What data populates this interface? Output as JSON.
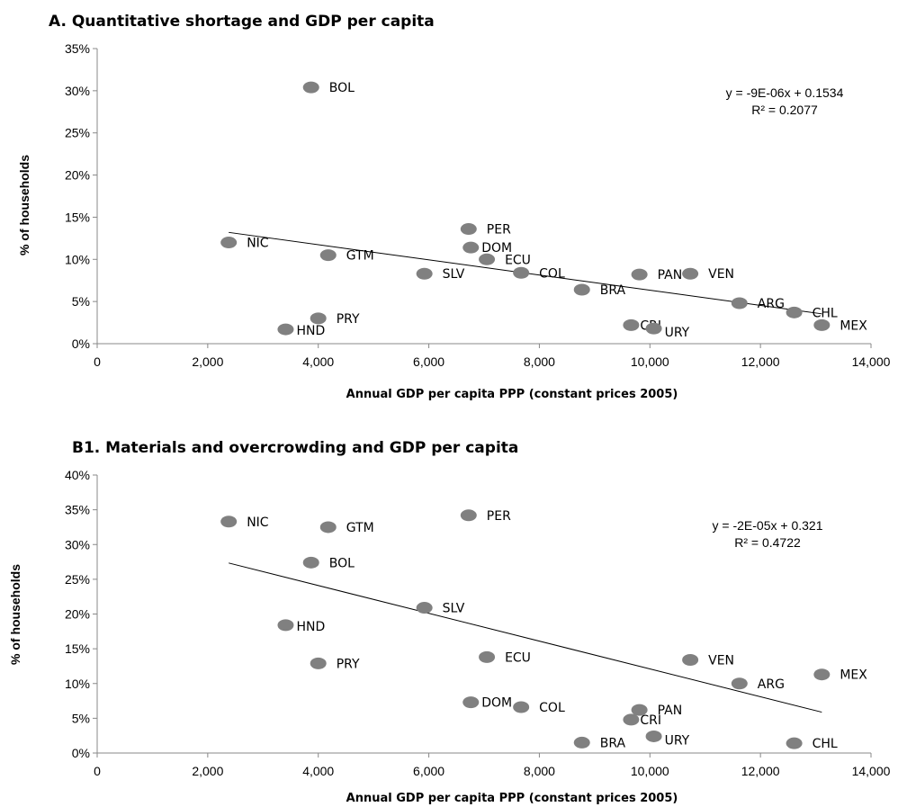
{
  "chart_data": [
    {
      "type": "scatter",
      "title": "A. Quantitative shortage and GDP per capita",
      "xlabel": "Annual GDP per capita PPP (constant prices 2005)",
      "ylabel": "% of households",
      "xlim": [
        0,
        14000
      ],
      "ylim": [
        0,
        0.35
      ],
      "x_ticks": [
        "0",
        "2,000",
        "4,000",
        "6,000",
        "8,000",
        "10,000",
        "12,000",
        "14,000"
      ],
      "y_ticks": [
        "0%",
        "5%",
        "10%",
        "15%",
        "20%",
        "25%",
        "30%",
        "35%"
      ],
      "points": [
        {
          "label": "BOL",
          "x": 3870,
          "y": 0.304
        },
        {
          "label": "NIC",
          "x": 2380,
          "y": 0.12
        },
        {
          "label": "GTM",
          "x": 4180,
          "y": 0.105
        },
        {
          "label": "SLV",
          "x": 5920,
          "y": 0.083
        },
        {
          "label": "PRY",
          "x": 4000,
          "y": 0.03
        },
        {
          "label": "HND",
          "x": 3410,
          "y": 0.017
        },
        {
          "label": "PER",
          "x": 6720,
          "y": 0.136
        },
        {
          "label": "DOM",
          "x": 6760,
          "y": 0.114
        },
        {
          "label": "ECU",
          "x": 7050,
          "y": 0.1
        },
        {
          "label": "COL",
          "x": 7670,
          "y": 0.084
        },
        {
          "label": "BRA",
          "x": 8770,
          "y": 0.064
        },
        {
          "label": "PAN",
          "x": 9810,
          "y": 0.082
        },
        {
          "label": "VEN",
          "x": 10730,
          "y": 0.083
        },
        {
          "label": "CRI",
          "x": 9660,
          "y": 0.022
        },
        {
          "label": "URY",
          "x": 10070,
          "y": 0.018
        },
        {
          "label": "ARG",
          "x": 11620,
          "y": 0.048
        },
        {
          "label": "CHL",
          "x": 12610,
          "y": 0.037
        },
        {
          "label": "MEX",
          "x": 13110,
          "y": 0.022
        }
      ],
      "trendline": {
        "slope": -9e-06,
        "intercept": 0.1534,
        "x_range": [
          2380,
          13110
        ]
      },
      "equation": "y = -9E-06x + 0.1534",
      "r2": "R² = 0.2077",
      "grid": false,
      "legend": "none"
    },
    {
      "type": "scatter",
      "title": "B1. Materials and overcrowding and GDP per capita",
      "xlabel": "Annual GDP per capita PPP (constant prices 2005)",
      "ylabel": "% of households",
      "xlim": [
        0,
        14000
      ],
      "ylim": [
        0,
        0.4
      ],
      "x_ticks": [
        "0",
        "2,000",
        "4,000",
        "6,000",
        "8,000",
        "10,000",
        "12,000",
        "14,000"
      ],
      "y_ticks": [
        "0%",
        "5%",
        "10%",
        "15%",
        "20%",
        "25%",
        "30%",
        "35%",
        "40%"
      ],
      "points": [
        {
          "label": "NIC",
          "x": 2380,
          "y": 0.333
        },
        {
          "label": "GTM",
          "x": 4180,
          "y": 0.325
        },
        {
          "label": "PER",
          "x": 6720,
          "y": 0.342
        },
        {
          "label": "BOL",
          "x": 3870,
          "y": 0.274
        },
        {
          "label": "SLV",
          "x": 5920,
          "y": 0.209
        },
        {
          "label": "HND",
          "x": 3410,
          "y": 0.184
        },
        {
          "label": "PRY",
          "x": 4000,
          "y": 0.129
        },
        {
          "label": "ECU",
          "x": 7050,
          "y": 0.138
        },
        {
          "label": "DOM",
          "x": 6760,
          "y": 0.073
        },
        {
          "label": "COL",
          "x": 7670,
          "y": 0.066
        },
        {
          "label": "BRA",
          "x": 8770,
          "y": 0.015
        },
        {
          "label": "PAN",
          "x": 9810,
          "y": 0.062
        },
        {
          "label": "CRI",
          "x": 9660,
          "y": 0.048
        },
        {
          "label": "URY",
          "x": 10070,
          "y": 0.024
        },
        {
          "label": "VEN",
          "x": 10730,
          "y": 0.134
        },
        {
          "label": "ARG",
          "x": 11620,
          "y": 0.1
        },
        {
          "label": "MEX",
          "x": 13110,
          "y": 0.113
        },
        {
          "label": "CHL",
          "x": 12610,
          "y": 0.014
        }
      ],
      "trendline": {
        "slope": -2e-05,
        "intercept": 0.321,
        "x_range": [
          2380,
          13110
        ]
      },
      "equation": "y = -2E-05x + 0.321",
      "r2": "R² = 0.4722",
      "grid": false,
      "legend": "none"
    }
  ]
}
